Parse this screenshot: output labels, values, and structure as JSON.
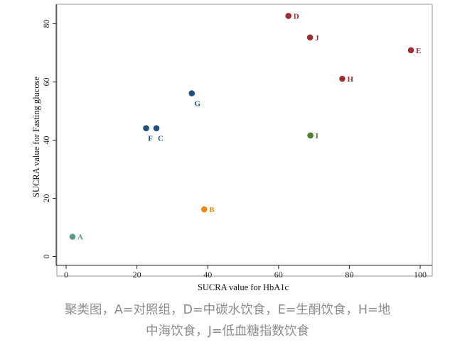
{
  "chart_data": {
    "type": "scatter",
    "xlabel": "SUCRA value for HbA1c",
    "ylabel": "SUCRA value for Fasting glucose",
    "xlim": [
      -3,
      102
    ],
    "ylim": [
      -3,
      85
    ],
    "xticks": [
      0,
      20,
      40,
      60,
      80,
      100
    ],
    "yticks": [
      0,
      20,
      40,
      60,
      80
    ],
    "grid": false,
    "points": [
      {
        "label": "A",
        "x": 1.8,
        "y": 6.8,
        "color": "#5b9b8c"
      },
      {
        "label": "B",
        "x": 39.0,
        "y": 16.2,
        "color": "#ee8a1a"
      },
      {
        "label": "C",
        "x": 25.5,
        "y": 44.1,
        "color": "#1f4f7a"
      },
      {
        "label": "D",
        "x": 62.8,
        "y": 82.7,
        "color": "#9a2f36"
      },
      {
        "label": "E",
        "x": 97.4,
        "y": 70.9,
        "color": "#9a2f36"
      },
      {
        "label": "F",
        "x": 22.6,
        "y": 44.1,
        "color": "#1f4f7a"
      },
      {
        "label": "G",
        "x": 35.5,
        "y": 56.1,
        "color": "#1f4f7a"
      },
      {
        "label": "H",
        "x": 78.0,
        "y": 61.1,
        "color": "#9a2f36"
      },
      {
        "label": "I",
        "x": 69.0,
        "y": 41.6,
        "color": "#4e7d32"
      },
      {
        "label": "J",
        "x": 68.9,
        "y": 75.3,
        "color": "#9a2f36"
      }
    ]
  },
  "caption": {
    "line1": "聚类图，A=对照组，D=中碳水饮食，E=生酮饮食，H=地",
    "line2": "中海饮食，J=低血糖指数饮食"
  }
}
